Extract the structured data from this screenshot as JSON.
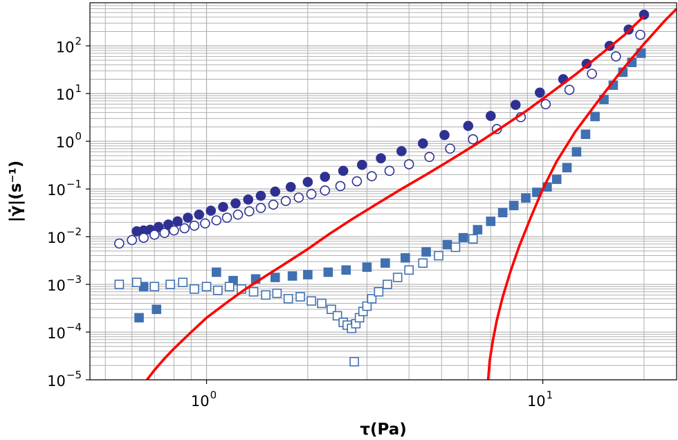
{
  "chart_data": {
    "type": "scatter",
    "title": "",
    "xlabel": "τ(Pa)",
    "ylabel": "|γ̇|(s⁻¹)",
    "xscale": "log",
    "yscale": "log",
    "xlim": [
      0.45,
      25
    ],
    "ylim": [
      1e-05,
      800
    ],
    "grid": true,
    "x_ticks": [
      {
        "value": 1,
        "base": "10",
        "exp": "0"
      },
      {
        "value": 10,
        "base": "10",
        "exp": "1"
      }
    ],
    "y_ticks": [
      {
        "value": 100,
        "base": "10",
        "exp": "2"
      },
      {
        "value": 10,
        "base": "10",
        "exp": "1"
      },
      {
        "value": 1,
        "base": "10",
        "exp": "0"
      },
      {
        "value": 0.1,
        "base": "10",
        "exp": "−1"
      },
      {
        "value": 0.01,
        "base": "10",
        "exp": "−2"
      },
      {
        "value": 0.001,
        "base": "10",
        "exp": "−3"
      },
      {
        "value": 0.0001,
        "base": "10",
        "exp": "−4"
      },
      {
        "value": 1e-05,
        "base": "10",
        "exp": "−5"
      }
    ],
    "colors": {
      "dark_blue": "#2e3192",
      "light_blue": "#4170b0",
      "red": "#ff0000",
      "grid": "#b0b0b0"
    },
    "series": [
      {
        "name": "dark blue filled circles",
        "marker": "circle",
        "filled": true,
        "color": "#2e3192",
        "x": [
          0.62,
          0.65,
          0.68,
          0.72,
          0.77,
          0.82,
          0.88,
          0.95,
          1.03,
          1.12,
          1.22,
          1.33,
          1.45,
          1.6,
          1.78,
          2.0,
          2.25,
          2.55,
          2.9,
          3.3,
          3.8,
          4.4,
          5.1,
          6.0,
          7.0,
          8.3,
          9.8,
          11.5,
          13.5,
          15.8,
          18.0,
          20.0
        ],
        "y": [
          0.013,
          0.0135,
          0.014,
          0.016,
          0.018,
          0.021,
          0.025,
          0.029,
          0.035,
          0.042,
          0.05,
          0.06,
          0.072,
          0.088,
          0.11,
          0.14,
          0.18,
          0.24,
          0.32,
          0.44,
          0.62,
          0.9,
          1.35,
          2.1,
          3.4,
          5.8,
          10.5,
          20.0,
          42.0,
          100.0,
          220.0,
          450.0
        ]
      },
      {
        "name": "dark blue open circles",
        "marker": "circle",
        "filled": false,
        "color": "#2e3192",
        "x": [
          0.55,
          0.6,
          0.65,
          0.7,
          0.75,
          0.8,
          0.86,
          0.92,
          0.99,
          1.07,
          1.15,
          1.24,
          1.34,
          1.45,
          1.58,
          1.72,
          1.88,
          2.05,
          2.25,
          2.5,
          2.8,
          3.1,
          3.5,
          4.0,
          4.6,
          5.3,
          6.2,
          7.3,
          8.6,
          10.2,
          12.0,
          14.0,
          16.5,
          19.5
        ],
        "y": [
          0.0072,
          0.0085,
          0.0095,
          0.011,
          0.012,
          0.0135,
          0.015,
          0.017,
          0.019,
          0.022,
          0.025,
          0.029,
          0.034,
          0.04,
          0.047,
          0.056,
          0.066,
          0.078,
          0.093,
          0.115,
          0.145,
          0.185,
          0.24,
          0.33,
          0.47,
          0.7,
          1.1,
          1.8,
          3.2,
          6.0,
          12.0,
          26.0,
          60.0,
          170.0
        ]
      },
      {
        "name": "light blue filled squares",
        "marker": "square",
        "filled": true,
        "color": "#4170b0",
        "x": [
          0.63,
          0.65,
          0.71,
          1.07,
          1.2,
          1.4,
          1.6,
          1.8,
          2.0,
          2.3,
          2.6,
          3.0,
          3.4,
          3.9,
          4.5,
          5.2,
          5.8,
          6.4,
          7.0,
          7.6,
          8.2,
          8.9,
          9.6,
          10.3,
          11.0,
          11.8,
          12.6,
          13.4,
          14.3,
          15.2,
          16.2,
          17.3,
          18.4,
          19.6
        ],
        "y": [
          0.0002,
          0.0009,
          0.0003,
          0.0018,
          0.0012,
          0.0013,
          0.0014,
          0.0015,
          0.0016,
          0.0018,
          0.002,
          0.0023,
          0.0028,
          0.0036,
          0.0048,
          0.0068,
          0.0095,
          0.014,
          0.021,
          0.032,
          0.045,
          0.065,
          0.085,
          0.11,
          0.16,
          0.28,
          0.6,
          1.4,
          3.3,
          7.5,
          15.0,
          28.0,
          45.0,
          70.0
        ]
      },
      {
        "name": "light blue open squares",
        "marker": "square",
        "filled": false,
        "color": "#4170b0",
        "x": [
          0.55,
          0.62,
          0.7,
          0.78,
          0.85,
          0.92,
          1.0,
          1.08,
          1.17,
          1.27,
          1.38,
          1.5,
          1.62,
          1.75,
          1.9,
          2.05,
          2.2,
          2.35,
          2.45,
          2.55,
          2.62,
          2.7,
          2.78,
          2.85,
          2.92,
          3.0,
          3.1,
          3.25,
          3.45,
          3.7,
          4.0,
          4.4,
          4.9,
          5.5,
          6.2,
          2.75
        ],
        "y": [
          0.001,
          0.0011,
          0.0009,
          0.001,
          0.0011,
          0.0008,
          0.0009,
          0.00075,
          0.0009,
          0.0008,
          0.0007,
          0.0006,
          0.00065,
          0.0005,
          0.00055,
          0.00045,
          0.0004,
          0.0003,
          0.00022,
          0.00016,
          0.00014,
          0.00012,
          0.00015,
          0.0002,
          0.00027,
          0.00035,
          0.0005,
          0.0007,
          0.001,
          0.0014,
          0.002,
          0.0028,
          0.004,
          0.006,
          0.009,
          2.4e-05
        ]
      },
      {
        "name": "red fit 1",
        "type": "line",
        "color": "#ff0000",
        "x": [
          0.665,
          0.7,
          0.75,
          0.8,
          0.9,
          1.0,
          1.15,
          1.3,
          1.5,
          1.75,
          2.0,
          2.3,
          2.7,
          3.2,
          3.8,
          4.5,
          5.3,
          6.3,
          7.5,
          9.0,
          10.5,
          12.5,
          15.0,
          17.5,
          20.0
        ],
        "y": [
          1e-05,
          1.6e-05,
          2.8e-05,
          4.5e-05,
          0.0001,
          0.0002,
          0.00042,
          0.00078,
          0.0015,
          0.003,
          0.0055,
          0.011,
          0.023,
          0.048,
          0.1,
          0.2,
          0.4,
          0.85,
          1.9,
          4.5,
          10.0,
          25.0,
          70.0,
          170.0,
          420.0
        ]
      },
      {
        "name": "red fit 2",
        "type": "line",
        "color": "#ff0000",
        "x": [
          6.88,
          6.95,
          7.1,
          7.3,
          7.6,
          8.0,
          8.5,
          9.2,
          10.0,
          11.0,
          12.5,
          14.5,
          17.0,
          20.0,
          23.0,
          25.0
        ],
        "y": [
          1e-05,
          2.5e-05,
          6.5e-05,
          0.00018,
          0.00055,
          0.0018,
          0.0062,
          0.025,
          0.1,
          0.38,
          1.6,
          6.5,
          28.0,
          110.0,
          330.0,
          600.0
        ]
      }
    ]
  }
}
